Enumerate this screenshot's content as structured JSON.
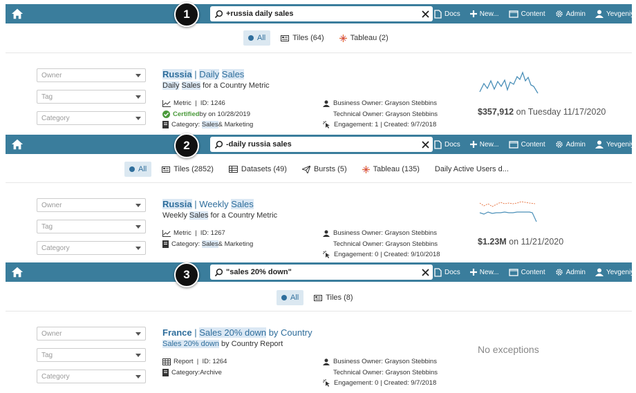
{
  "colors": {
    "topbar": "#3a7d9c",
    "link": "#2f6e9c",
    "highlight": "#dbe8f4",
    "certified": "#4a9a3a"
  },
  "nav": {
    "docs": "Docs",
    "new": "New...",
    "content": "Content",
    "admin": "Admin",
    "user": "Yevgeniya"
  },
  "filters": {
    "owner": "Owner",
    "tag": "Tag",
    "category": "Category"
  },
  "panels": [
    {
      "step": "1",
      "query": "+russia daily sales",
      "tabs": {
        "all": "All",
        "tiles": "Tiles (64)",
        "tableau": "Tableau (2)"
      },
      "result": {
        "title_country": "Russia",
        "title_sep": " | ",
        "title_name_1": "Daily",
        "title_name_2": " ",
        "title_name_3": "Sales",
        "sub_1": "Daily",
        "sub_2": " ",
        "sub_3": "Sales",
        "sub_rest": " for a Country Metric",
        "type": "Metric",
        "id": "ID: 1246",
        "certified": "Certified",
        "certified_rest": " by  on 10/28/2019",
        "category_label": "Category:",
        "category_hl": "Sales",
        "category_rest": " & Marketing",
        "business_owner": "Business Owner: Grayson Stebbins",
        "technical_owner": "Technical Owner: Grayson Stebbins",
        "engagement": "Engagement: 1 | Created: 9/7/2018",
        "value_bold": "$357,912",
        "value_rest": " on Tuesday 11/17/2020"
      }
    },
    {
      "step": "2",
      "query": "-daily russia sales",
      "tabs": {
        "all": "All",
        "tiles": "Tiles (2852)",
        "datasets": "Datasets (49)",
        "bursts": "Bursts (5)",
        "tableau": "Tableau (135)",
        "dau": "Daily Active Users d..."
      },
      "result": {
        "title_country": "Russia",
        "title_sep": " | ",
        "title_name_1": "Weekly ",
        "title_name_3": "Sales",
        "sub_1": "Weekly ",
        "sub_3": "Sales",
        "sub_rest": " for a Country Metric",
        "type": "Metric",
        "id": "ID: 1267",
        "category_label": "Category:",
        "category_hl": "Sales",
        "category_rest": " & Marketing",
        "business_owner": "Business Owner: Grayson Stebbins",
        "technical_owner": "Technical Owner: Grayson Stebbins",
        "engagement": "Engagement: 0 | Created: 9/10/2018",
        "value_bold": "$1.23M",
        "value_rest": " on 11/21/2020"
      }
    },
    {
      "step": "3",
      "query": "\"sales 20% down\"",
      "tabs": {
        "all": "All",
        "tiles": "Tiles (8)"
      },
      "result": {
        "title_country": "France",
        "title_sep": " | ",
        "title_hl": "Sales 20% down",
        "title_rest": " by Country",
        "sub_hl": "Sales 20% down",
        "sub_rest": " by Country Report",
        "type": "Report",
        "id": "ID: 1264",
        "category_label": "Category:",
        "category_rest": " Archive",
        "business_owner": "Business Owner: Grayson Stebbins",
        "technical_owner": "Technical Owner: Grayson Stebbins",
        "engagement": "Engagement: 0 | Created: 9/7/2018",
        "no_exceptions": "No exceptions"
      }
    }
  ]
}
